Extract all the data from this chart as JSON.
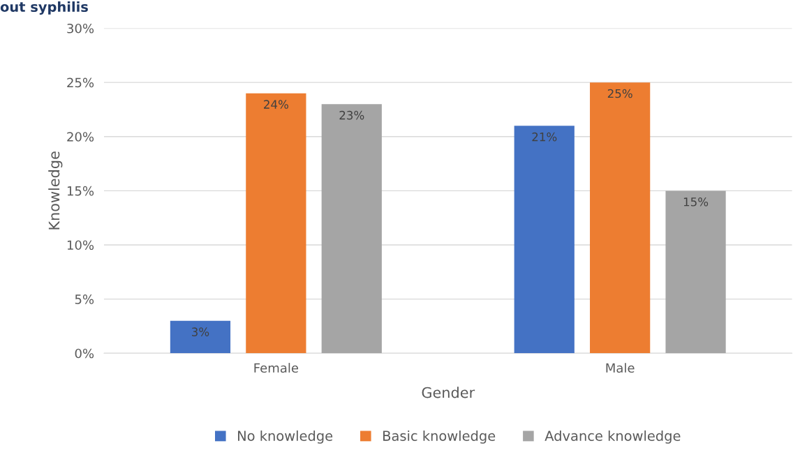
{
  "chart_data": {
    "type": "bar",
    "title": "out syphilis",
    "xlabel": "Gender",
    "ylabel": "Knowledge",
    "categories": [
      "Female",
      "Male"
    ],
    "series": [
      {
        "name": "No knowledge",
        "color": "#4472c4",
        "values": [
          3,
          21
        ],
        "value_labels": [
          "3%",
          "21%"
        ]
      },
      {
        "name": "Basic knowledge",
        "color": "#ed7d31",
        "values": [
          24,
          25
        ],
        "value_labels": [
          "24%",
          "25%"
        ]
      },
      {
        "name": "Advance knowledge",
        "color": "#a5a5a5",
        "values": [
          23,
          15
        ],
        "value_labels": [
          "23%",
          "15%"
        ]
      }
    ],
    "ylim": [
      0,
      30
    ],
    "yticks": [
      {
        "value": 0,
        "label": "0%"
      },
      {
        "value": 5,
        "label": "5%"
      },
      {
        "value": 10,
        "label": "10%"
      },
      {
        "value": 15,
        "label": "15%"
      },
      {
        "value": 20,
        "label": "20%"
      },
      {
        "value": 25,
        "label": "25%"
      },
      {
        "value": 30,
        "label": "30%"
      }
    ],
    "grid": "y",
    "legend": "bottom"
  }
}
